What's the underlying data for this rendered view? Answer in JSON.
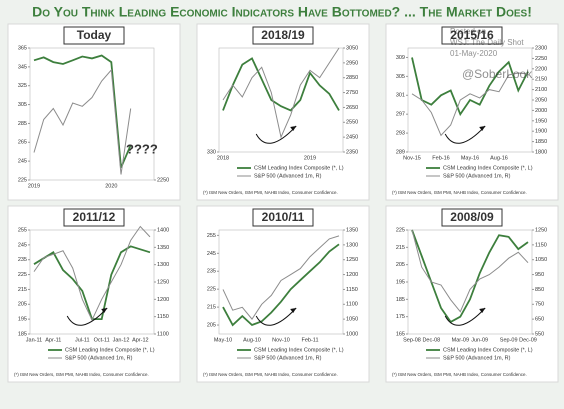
{
  "title": "Do You Think Leading Economic Indicators Have Bottomed? ... The Market Does!",
  "watermark": [
    "Posted on",
    "WSJ: The Daily Shot",
    "01-May-2020",
    "@SoberLook"
  ],
  "chart_data": [
    {
      "type": "line",
      "title": "Today",
      "categories": [
        "2019",
        null,
        null,
        null,
        null,
        null,
        null,
        null,
        "2020",
        null,
        null,
        null,
        null
      ],
      "series": [
        {
          "color": "#3d7f3d",
          "values": [
            352,
            355,
            350,
            348,
            352,
            356,
            354,
            357,
            350,
            238,
            262,
            null,
            null
          ]
        },
        {
          "color": "#8c8c8c",
          "axis": "y2",
          "values": [
            2500,
            2800,
            2900,
            2750,
            2950,
            2920,
            3000,
            3150,
            3250,
            2300,
            2900,
            null,
            null
          ]
        }
      ],
      "ylim": [
        225,
        365
      ],
      "yticks": [
        225,
        245,
        265,
        285,
        305,
        325,
        345,
        365
      ],
      "y2lim": [
        2250,
        3450
      ],
      "y2ticks": [
        2250
      ],
      "annotations": [
        "????"
      ]
    },
    {
      "type": "line",
      "title": "2018/19",
      "categories": [
        "2018",
        null,
        null,
        null,
        null,
        null,
        null,
        null,
        null,
        "2019",
        null,
        null,
        null
      ],
      "series": [
        {
          "name": "CSM Leading Index Composite (*, L)",
          "color": "#3d7f3d",
          "values": [
            350,
            362,
            372,
            375,
            365,
            355,
            352,
            350,
            355,
            368,
            362,
            358,
            350
          ]
        },
        {
          "name": "S&P 500 (Advanced 1m, R)",
          "color": "#8c8c8c",
          "axis": "y2",
          "values": [
            2700,
            2800,
            2720,
            2850,
            2920,
            2750,
            2450,
            2600,
            2800,
            2900,
            2850,
            2950,
            3050
          ]
        }
      ],
      "ylim": [
        330,
        380
      ],
      "yticks": [
        330
      ],
      "y2lim": [
        2350,
        3050
      ],
      "y2ticks": [
        2350,
        2450,
        2550,
        2650,
        2750,
        2850,
        2950,
        3050
      ],
      "note": "(*) ISM New Orders, ISM PMI, NAHB Index, Consumer Confidence."
    },
    {
      "type": "line",
      "title": "2015/16",
      "categories": [
        "Nov-15",
        null,
        null,
        "Feb-16",
        null,
        null,
        "May-16",
        null,
        null,
        "Aug-16",
        null,
        null,
        null
      ],
      "series": [
        {
          "name": "CSM Leading Index Composite (*, L)",
          "color": "#3d7f3d",
          "values": [
            309,
            300,
            299,
            301,
            302,
            297,
            300,
            299,
            303,
            306,
            308,
            302,
            306
          ]
        },
        {
          "name": "S&P 500 (Advanced 1m, R)",
          "color": "#8c8c8c",
          "axis": "y2",
          "values": [
            2080,
            2050,
            1990,
            1880,
            1930,
            2050,
            2080,
            2060,
            2100,
            2090,
            2170,
            2180,
            2175
          ]
        }
      ],
      "ylim": [
        289,
        311
      ],
      "yticks": [
        289,
        293,
        297,
        301,
        305,
        309
      ],
      "y2lim": [
        1800,
        2300
      ],
      "y2ticks": [
        1800,
        1850,
        1900,
        1950,
        2000,
        2050,
        2100,
        2150,
        2200,
        2250,
        2300
      ],
      "note": "(*) ISM New Orders, ISM PMI, NAHB Index, Consumer Confidence."
    },
    {
      "type": "line",
      "title": "2011/12",
      "categories": [
        "Jan-11",
        null,
        "Apr-11",
        null,
        null,
        "Jul-11",
        null,
        "Oct-11",
        null,
        "Jan-12",
        null,
        "Apr-12",
        null
      ],
      "series": [
        {
          "name": "CSM Leading Index Composite (*, L)",
          "color": "#3d7f3d",
          "values": [
            232,
            236,
            240,
            228,
            222,
            214,
            195,
            195,
            225,
            240,
            244,
            242,
            240
          ]
        },
        {
          "name": "S&P 500 (Advanced 1m, R)",
          "color": "#8c8c8c",
          "axis": "y2",
          "values": [
            1280,
            1320,
            1330,
            1340,
            1290,
            1200,
            1140,
            1200,
            1250,
            1300,
            1370,
            1410,
            1380
          ]
        }
      ],
      "ylim": [
        185,
        255
      ],
      "yticks": [
        185,
        195,
        205,
        215,
        225,
        235,
        245,
        255
      ],
      "y2lim": [
        1100,
        1400
      ],
      "y2ticks": [
        1100,
        1150,
        1200,
        1250,
        1300,
        1350,
        1400
      ],
      "note": "(*) ISM New Orders, ISM PMI, NAHB Index, Consumer Confidence."
    },
    {
      "type": "line",
      "title": "2010/11",
      "categories": [
        "May-10",
        null,
        null,
        "Aug-10",
        null,
        null,
        "Nov-10",
        null,
        null,
        "Feb-11",
        null,
        null,
        null
      ],
      "series": [
        {
          "name": "CSM Leading Index Composite (*, L)",
          "color": "#3d7f3d",
          "values": [
            215,
            205,
            210,
            205,
            207,
            212,
            218,
            225,
            230,
            235,
            240,
            246,
            250
          ]
        },
        {
          "name": "S&P 500 (Advanced 1m, R)",
          "color": "#8c8c8c",
          "axis": "y2",
          "values": [
            1150,
            1080,
            1090,
            1050,
            1100,
            1130,
            1180,
            1200,
            1220,
            1260,
            1290,
            1320,
            1330
          ]
        }
      ],
      "ylim": [
        200,
        258
      ],
      "yticks": [
        205,
        215,
        225,
        235,
        245,
        255
      ],
      "y2lim": [
        1000,
        1350
      ],
      "y2ticks": [
        1000,
        1050,
        1100,
        1150,
        1200,
        1250,
        1300,
        1350
      ],
      "note": "(*) ISM New Orders, ISM PMI, NAHB Index, Consumer Confidence."
    },
    {
      "type": "line",
      "title": "2008/09",
      "categories": [
        "Sep-08",
        null,
        "Dec-08",
        null,
        null,
        "Mar-09",
        null,
        "Jun-09",
        null,
        null,
        "Sep-09",
        null,
        "Dec-09"
      ],
      "series": [
        {
          "name": "CSM Leading Index Composite (*, L)",
          "color": "#3d7f3d",
          "values": [
            225,
            210,
            195,
            180,
            172,
            175,
            185,
            200,
            212,
            222,
            221,
            214,
            218
          ]
        },
        {
          "name": "S&P 500 (Advanced 1m, R)",
          "color": "#8c8c8c",
          "axis": "y2",
          "values": [
            1250,
            1000,
            900,
            880,
            780,
            700,
            850,
            920,
            950,
            1000,
            1060,
            1100,
            1030
          ]
        }
      ],
      "ylim": [
        165,
        225
      ],
      "yticks": [
        165,
        175,
        185,
        195,
        205,
        215,
        225
      ],
      "y2lim": [
        550,
        1250
      ],
      "y2ticks": [
        550,
        650,
        750,
        850,
        950,
        1050,
        1150,
        1250
      ],
      "note": "(*) ISM New Orders, ISM PMI, NAHB Index, Consumer Confidence."
    }
  ]
}
